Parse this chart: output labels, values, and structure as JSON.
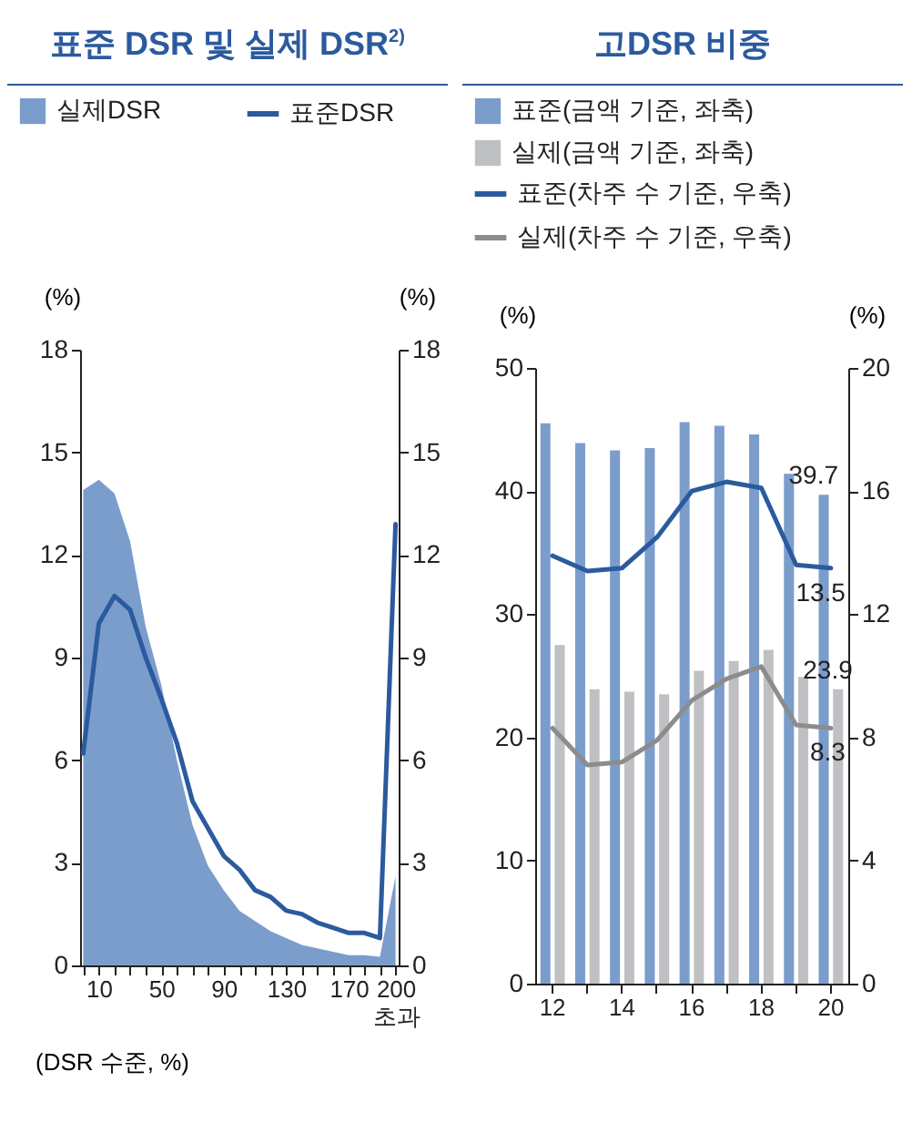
{
  "chart_data": [
    {
      "type": "area",
      "title": "표준 DSR 및 실제 DSR$^{2)}$",
      "xlabel": "(DSR 수준, %)",
      "ylabel": "(%)",
      "y2label": "(%)",
      "categories": [
        null,
        "10",
        null,
        null,
        null,
        "50",
        null,
        null,
        null,
        "90",
        null,
        null,
        null,
        "130",
        null,
        null,
        null,
        "170",
        null,
        null,
        "200 초과"
      ],
      "series": [
        {
          "name": "실제DSR",
          "color": "#7b9dcc",
          "values": [
            13.9,
            14.2,
            13.8,
            12.4,
            9.9,
            8.2,
            6.0,
            4.1,
            2.9,
            2.2,
            1.6,
            1.3,
            1.0,
            0.8,
            0.6,
            0.5,
            0.4,
            0.3,
            0.3,
            0.25,
            2.6
          ]
        },
        {
          "name": "표준DSR",
          "type": "line",
          "axis": "y2",
          "color": "#2b5a9e",
          "values": [
            6.2,
            10.0,
            10.8,
            10.4,
            9.0,
            7.8,
            6.5,
            4.8,
            4.0,
            3.2,
            2.8,
            2.2,
            2.0,
            1.6,
            1.5,
            1.25,
            1.1,
            0.95,
            0.95,
            0.8,
            12.9
          ]
        }
      ],
      "ylim": [
        0,
        18
      ],
      "yticks": [
        0,
        3,
        6,
        9,
        12,
        15,
        18
      ],
      "y2lim": [
        0,
        18
      ],
      "y2ticks": [
        0,
        3,
        6,
        9,
        12,
        15,
        18
      ],
      "grid": false,
      "legend": "top left"
    },
    {
      "type": "bar",
      "title": "고DSR 비중",
      "ylabel": "(%)",
      "y2label": "(%)",
      "categories": [
        "12",
        null,
        "14",
        null,
        "16",
        null,
        "18",
        null,
        "20"
      ],
      "series": [
        {
          "name": "표준(금액 기준, 좌축)",
          "color": "#7b9dcc",
          "values": [
            45.5,
            43.9,
            43.3,
            43.5,
            45.6,
            45.3,
            44.6,
            41.4,
            39.7
          ],
          "value_labels": [
            null,
            null,
            null,
            null,
            null,
            null,
            null,
            null,
            "39.7"
          ]
        },
        {
          "name": "실제(금액 기준, 좌축)",
          "color": "#bfc0c4",
          "values": [
            27.5,
            23.9,
            23.7,
            23.5,
            25.4,
            26.2,
            27.1,
            24.9,
            23.9
          ],
          "value_labels": [
            null,
            null,
            null,
            null,
            null,
            null,
            null,
            null,
            "23.9"
          ]
        },
        {
          "name": "표준(차주 수 기준, 우축)",
          "type": "line",
          "axis": "y2",
          "color": "#2b5a9e",
          "values": [
            13.9,
            13.4,
            13.5,
            14.5,
            16.0,
            16.3,
            16.1,
            13.6,
            13.5
          ],
          "value_labels": [
            null,
            null,
            null,
            null,
            null,
            null,
            null,
            null,
            "13.5"
          ]
        },
        {
          "name": "실제(차주 수 기준, 우축)",
          "type": "line",
          "axis": "y2",
          "color": "#8c8c8c",
          "values": [
            8.3,
            7.1,
            7.2,
            7.9,
            9.2,
            9.9,
            10.3,
            8.4,
            8.3
          ],
          "value_labels": [
            null,
            null,
            null,
            null,
            null,
            null,
            null,
            null,
            "8.3"
          ]
        }
      ],
      "ylim": [
        0,
        50
      ],
      "yticks": [
        0,
        10,
        20,
        30,
        40,
        50
      ],
      "y2lim": [
        0,
        20
      ],
      "y2ticks": [
        0,
        4,
        8,
        12,
        16,
        20
      ],
      "grid": false,
      "legend": "top left"
    }
  ]
}
